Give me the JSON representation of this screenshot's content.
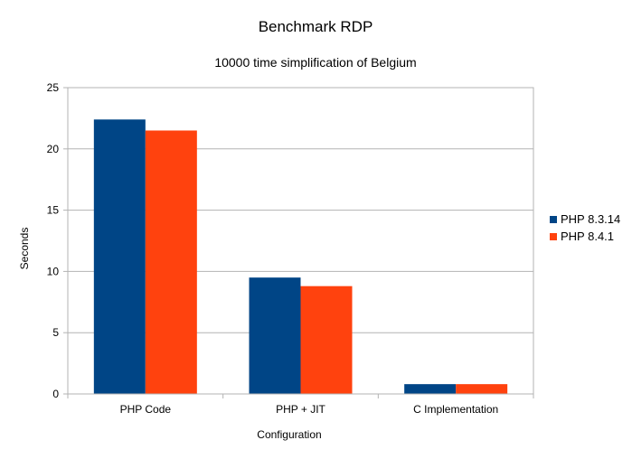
{
  "chart_data": {
    "type": "bar",
    "title": "Benchmark RDP",
    "subtitle": "10000 time simplification of Belgium",
    "xlabel": "Configuration",
    "ylabel": "Seconds",
    "categories": [
      "PHP Code",
      "PHP + JIT",
      "C Implementation"
    ],
    "series": [
      {
        "name": "PHP 8.3.14",
        "color": "#004586",
        "values": [
          22.4,
          9.5,
          0.8
        ]
      },
      {
        "name": "PHP 8.4.1",
        "color": "#ff420e",
        "values": [
          21.5,
          8.8,
          0.8
        ]
      }
    ],
    "ylim": [
      0,
      25
    ],
    "yticks": [
      0,
      5,
      10,
      15,
      20,
      25
    ],
    "grid": true,
    "legend": "right"
  }
}
